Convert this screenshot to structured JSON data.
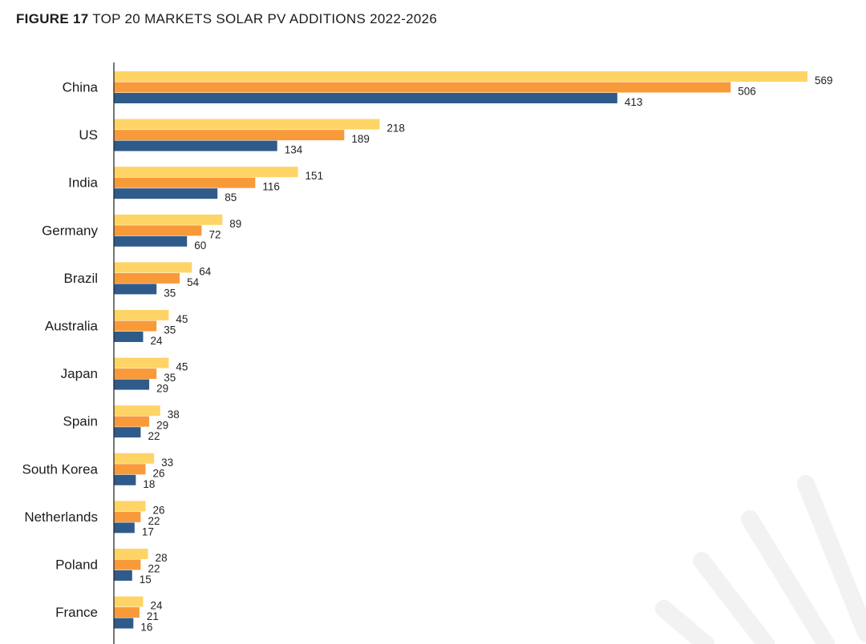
{
  "figure": {
    "number": "FIGURE 17",
    "title": "TOP 20 MARKETS SOLAR PV ADDITIONS 2022-2026"
  },
  "colors": {
    "series_top": "#ffd466",
    "series_mid": "#f89a3a",
    "series_bottom": "#2e5b8a",
    "axis": "#1c1c1c",
    "decor": "#f2f2f2"
  },
  "chart_data": {
    "type": "bar",
    "orientation": "horizontal",
    "categories": [
      "China",
      "US",
      "India",
      "Germany",
      "Brazil",
      "Australia",
      "Japan",
      "Spain",
      "South Korea",
      "Netherlands",
      "Poland",
      "France"
    ],
    "series": [
      {
        "values": [
          569,
          218,
          151,
          89,
          64,
          45,
          45,
          38,
          33,
          26,
          28,
          24
        ],
        "color": "#ffd466"
      },
      {
        "values": [
          506,
          189,
          116,
          72,
          54,
          35,
          35,
          29,
          26,
          22,
          22,
          21
        ],
        "color": "#f89a3a"
      },
      {
        "values": [
          413,
          134,
          85,
          60,
          35,
          24,
          29,
          22,
          18,
          17,
          15,
          16
        ],
        "color": "#2e5b8a"
      }
    ],
    "xlim": [
      0,
      569
    ],
    "grid": false,
    "legend": "none"
  }
}
